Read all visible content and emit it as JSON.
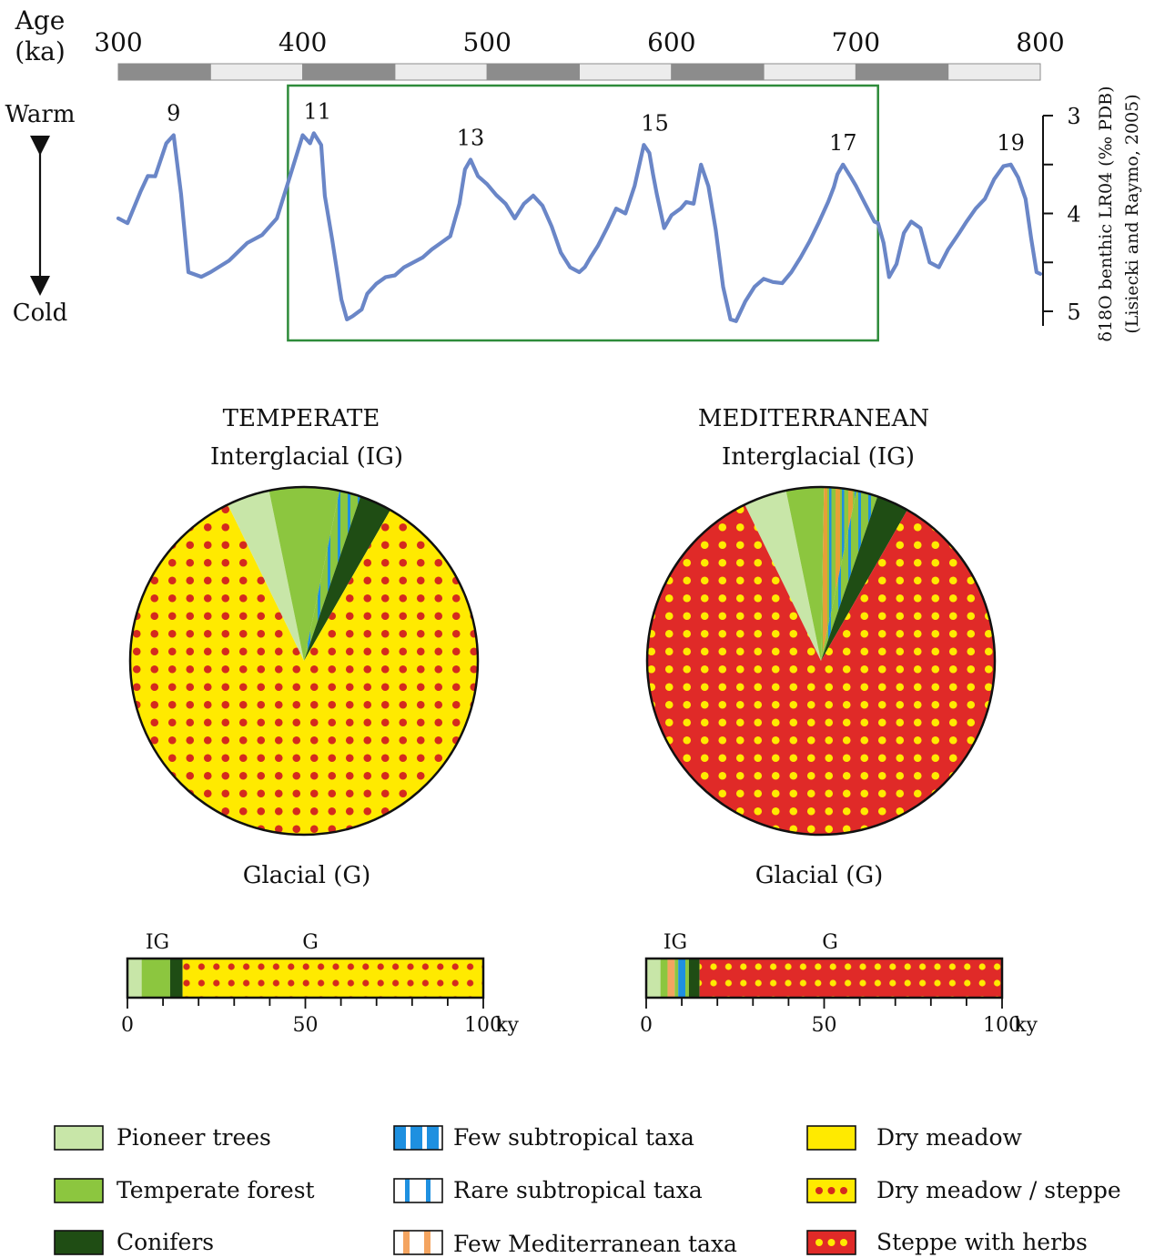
{
  "chart_data": [
    {
      "type": "line",
      "name_text": "",
      "x_label_lines": [
        "Age",
        "(ka)"
      ],
      "x_ticks": [
        300,
        400,
        500,
        600,
        700,
        800
      ],
      "xlim": [
        300,
        800
      ],
      "ylim": [
        3,
        5
      ],
      "y_inverted": true,
      "y_ticks": [
        3,
        4,
        5
      ],
      "y_label_lines": [
        "δ18O benthic LR04 (‰ PDB)",
        "(Lisiecki and Raymo, 2005)"
      ],
      "arrow_labels": {
        "top": "Warm",
        "bottom": "Cold"
      },
      "stage_labels": [
        {
          "label": "9",
          "x": 330
        },
        {
          "label": "11",
          "x": 408
        },
        {
          "label": "13",
          "x": 491
        },
        {
          "label": "15",
          "x": 591
        },
        {
          "label": "17",
          "x": 693
        },
        {
          "label": "19",
          "x": 784
        }
      ],
      "highlight_range": [
        392,
        712
      ],
      "highlight_color": "#2e8b3a",
      "line_color": "#6a86c7",
      "series": [
        {
          "x": [
            300,
            305,
            312,
            316,
            320,
            326,
            330,
            334,
            338,
            345,
            350,
            360,
            370,
            378,
            386,
            392,
            400,
            404,
            406,
            410,
            412,
            416,
            421,
            424,
            427,
            432,
            435,
            440,
            445,
            450,
            455,
            460,
            465,
            470,
            475,
            480,
            485,
            488,
            491,
            495,
            500,
            505,
            510,
            515,
            520,
            525,
            530,
            535,
            540,
            545,
            550,
            553,
            556,
            560,
            565,
            570,
            575,
            580,
            585,
            588,
            590,
            592,
            596,
            600,
            605,
            608,
            612,
            616,
            620,
            624,
            628,
            632,
            635,
            640,
            645,
            650,
            655,
            660,
            665,
            670,
            675,
            680,
            685,
            688,
            690,
            693,
            697,
            700,
            705,
            710,
            712,
            715,
            718,
            722,
            726,
            730,
            735,
            740,
            745,
            750,
            756,
            760,
            765,
            770,
            775,
            780,
            784,
            788,
            792,
            795,
            798,
            800
          ],
          "y": [
            4.05,
            4.1,
            3.78,
            3.65,
            3.62,
            3.25,
            3.2,
            3.8,
            4.6,
            4.68,
            4.6,
            4.45,
            4.3,
            4.22,
            4.05,
            3.72,
            3.2,
            3.25,
            3.18,
            3.3,
            3.82,
            4.3,
            4.88,
            5.05,
            5.05,
            4.98,
            4.82,
            4.75,
            4.65,
            4.6,
            4.55,
            4.5,
            4.45,
            4.4,
            4.3,
            4.2,
            3.9,
            3.55,
            3.45,
            3.65,
            3.7,
            3.78,
            3.9,
            4.05,
            3.9,
            3.85,
            3.92,
            4.1,
            4.4,
            4.55,
            4.6,
            4.58,
            4.45,
            4.3,
            4.15,
            3.95,
            4.0,
            3.75,
            3.3,
            3.35,
            3.6,
            3.8,
            4.15,
            4.05,
            3.95,
            3.85,
            3.9,
            3.5,
            3.72,
            4.2,
            4.75,
            5.05,
            5.1,
            4.9,
            4.75,
            4.7,
            4.7,
            4.68,
            4.6,
            4.45,
            4.28,
            4.12,
            3.88,
            3.7,
            3.6,
            3.5,
            3.62,
            3.75,
            3.9,
            4.05,
            4.1,
            4.3,
            4.65,
            4.55,
            4.2,
            4.05,
            4.15,
            4.5,
            4.55,
            4.4,
            4.2,
            4.05,
            3.95,
            3.85,
            3.65,
            3.55,
            3.5,
            3.6,
            3.85,
            4.25,
            4.6,
            4.65
          ]
        }
      ]
    },
    {
      "type": "pie",
      "name_text": "TEMPERATE",
      "top_label": "Interglacial (IG)",
      "bottom_label": "Glacial (G)",
      "slices": [
        {
          "label": "Pioneer trees",
          "value": 4
        },
        {
          "label": "Temperate forest",
          "value": 6.5
        },
        {
          "label": "Few subtropical taxa",
          "value": 2
        },
        {
          "label": "Conifers",
          "value": 3
        },
        {
          "label": "Dry meadow / steppe",
          "value": 84.5
        }
      ]
    },
    {
      "type": "pie",
      "name_text": "MEDITERRANEAN",
      "top_label": "Interglacial (IG)",
      "bottom_label": "Glacial (G)",
      "slices": [
        {
          "label": "Pioneer trees",
          "value": 4
        },
        {
          "label": "Temperate forest",
          "value": 3.5
        },
        {
          "label": "Few Mediterranean taxa",
          "value": 3
        },
        {
          "label": "Few subtropical taxa",
          "value": 2
        },
        {
          "label": "Conifers",
          "value": 3
        },
        {
          "label": "Steppe with herbs",
          "value": 84.5
        }
      ]
    },
    {
      "type": "bar",
      "name_text": "",
      "phase_labels": [
        "IG",
        "G"
      ],
      "x_ticks": [
        0,
        50,
        100
      ],
      "x_unit": "ky",
      "xlim": [
        0,
        100
      ],
      "segments": [
        {
          "label": "Pioneer trees",
          "from": 0,
          "to": 4
        },
        {
          "label": "Temperate forest",
          "from": 4,
          "to": 12
        },
        {
          "label": "Conifers",
          "from": 12,
          "to": 15.5
        },
        {
          "label": "Dry meadow / steppe",
          "from": 15.5,
          "to": 100
        }
      ]
    },
    {
      "type": "bar",
      "name_text": "",
      "phase_labels": [
        "IG",
        "G"
      ],
      "x_ticks": [
        0,
        50,
        100
      ],
      "x_unit": "ky",
      "xlim": [
        0,
        100
      ],
      "segments": [
        {
          "label": "Pioneer trees",
          "from": 0,
          "to": 4
        },
        {
          "label": "Temperate forest",
          "from": 4,
          "to": 6
        },
        {
          "label": "Few Mediterranean taxa",
          "from": 6,
          "to": 8
        },
        {
          "label": "Temperate forest",
          "from": 8,
          "to": 9
        },
        {
          "label": "Few subtropical taxa",
          "from": 9,
          "to": 11
        },
        {
          "label": "Temperate forest",
          "from": 11,
          "to": 12
        },
        {
          "label": "Conifers",
          "from": 12,
          "to": 15
        },
        {
          "label": "Steppe with herbs",
          "from": 15,
          "to": 100
        }
      ]
    }
  ],
  "legend": [
    {
      "label": "Pioneer trees",
      "swatch": "pioneer"
    },
    {
      "label": "Temperate forest",
      "swatch": "forest"
    },
    {
      "label": "Conifers",
      "swatch": "conifer"
    },
    {
      "label": "Few subtropical taxa",
      "swatch": "subtrop_few"
    },
    {
      "label": "Rare subtropical taxa",
      "swatch": "subtrop_rare"
    },
    {
      "label": "Few Mediterranean taxa",
      "swatch": "med_few"
    },
    {
      "label": "Dry meadow",
      "swatch": "meadow"
    },
    {
      "label": "Dry meadow / steppe",
      "swatch": "meadow_steppe"
    },
    {
      "label": "Steppe with herbs",
      "swatch": "steppe_herbs"
    }
  ],
  "colors": {
    "pioneer": "#c8e6a8",
    "forest": "#8cc63f",
    "conifer": "#1f4d14",
    "subtropical": "#1e90e0",
    "mediterranean": "#f4a460",
    "meadow": "#ffea00",
    "dots_on_meadow": "#d42a1e",
    "steppe": "#e02a28",
    "dots_on_steppe": "#ffea00"
  }
}
